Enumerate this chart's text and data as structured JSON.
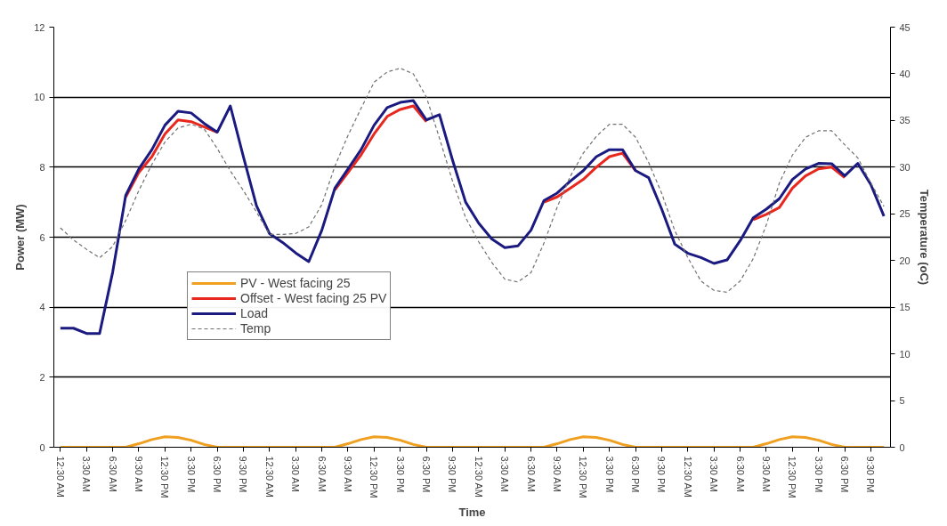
{
  "chart_data": {
    "type": "line",
    "xlabel": "Time",
    "ylabel": "Power (MW)",
    "y2label": "Temperature (oC)",
    "ylim": [
      0,
      12
    ],
    "yticks": [
      0,
      2,
      4,
      6,
      8,
      10,
      12
    ],
    "y2lim": [
      0,
      45
    ],
    "y2ticks": [
      0,
      5,
      10,
      15,
      20,
      25,
      30,
      35,
      40,
      45
    ],
    "categories": [
      "12:30 AM",
      null,
      "3:30 AM",
      null,
      "6:30 AM",
      null,
      "9:30 AM",
      null,
      "12:30 PM",
      null,
      "3:30 PM",
      null,
      "6:30 PM",
      null,
      "9:30 PM",
      null,
      "12:30 AM",
      null,
      "3:30 AM",
      null,
      "6:30 AM",
      null,
      "9:30 AM",
      null,
      "12:30 PM",
      null,
      "3:30 PM",
      null,
      "6:30 PM",
      null,
      "9:30 PM",
      null,
      "12:30 AM",
      null,
      "3:30 AM",
      null,
      "6:30 AM",
      null,
      "9:30 AM",
      null,
      "12:30 PM",
      null,
      "3:30 PM",
      null,
      "6:30 PM",
      null,
      "9:30 PM",
      null,
      "12:30 AM",
      null,
      "3:30 AM",
      null,
      "6:30 AM",
      null,
      "9:30 AM",
      null,
      "12:30 PM",
      null,
      "3:30 PM",
      null,
      "6:30 PM",
      null,
      "9:30 PM",
      null
    ],
    "grid": "y",
    "legend": "left",
    "line_style": "solid",
    "marker": "none",
    "series": [
      {
        "name": "PV - West facing 25",
        "color": "#f0a020",
        "values": [
          0,
          0,
          0,
          0,
          0,
          0,
          0.1,
          0.22,
          0.3,
          0.28,
          0.2,
          0.08,
          0,
          0,
          0,
          0,
          0,
          0,
          0,
          0,
          0,
          0,
          0.1,
          0.22,
          0.3,
          0.28,
          0.2,
          0.08,
          0,
          0,
          0,
          0,
          0,
          0,
          0,
          0,
          0,
          0,
          0.1,
          0.22,
          0.3,
          0.28,
          0.2,
          0.08,
          0,
          0,
          0,
          0,
          0,
          0,
          0,
          0,
          0,
          0,
          0.1,
          0.22,
          0.3,
          0.28,
          0.2,
          0.08,
          0,
          0,
          0,
          0
        ]
      },
      {
        "name": "Offset - West facing 25 PV",
        "color": "#e8281e",
        "values": [
          null,
          null,
          null,
          null,
          null,
          7.15,
          7.85,
          8.3,
          8.95,
          9.35,
          9.3,
          9.15,
          9.0,
          null,
          null,
          null,
          null,
          null,
          null,
          null,
          null,
          7.35,
          7.85,
          8.35,
          8.95,
          9.45,
          9.65,
          9.75,
          9.3,
          null,
          null,
          null,
          null,
          null,
          null,
          null,
          null,
          7.0,
          7.15,
          7.4,
          7.65,
          8.0,
          8.3,
          8.4,
          7.9,
          null,
          null,
          null,
          null,
          null,
          null,
          null,
          null,
          6.5,
          6.65,
          6.85,
          7.4,
          7.75,
          7.95,
          8.0,
          7.7,
          null,
          null,
          null
        ]
      },
      {
        "name": "Load",
        "color": "#1a1a80",
        "values": [
          3.4,
          3.4,
          3.25,
          3.25,
          5.0,
          7.2,
          7.95,
          8.5,
          9.2,
          9.6,
          9.55,
          9.25,
          9.0,
          9.75,
          8.3,
          6.9,
          6.1,
          5.85,
          5.55,
          5.3,
          6.2,
          7.4,
          7.95,
          8.5,
          9.2,
          9.7,
          9.85,
          9.9,
          9.35,
          9.5,
          8.2,
          7.0,
          6.4,
          5.95,
          5.7,
          5.75,
          6.2,
          7.05,
          7.26,
          7.6,
          7.9,
          8.3,
          8.5,
          8.5,
          7.9,
          7.7,
          6.8,
          5.8,
          5.54,
          5.42,
          5.25,
          5.35,
          5.9,
          6.55,
          6.8,
          7.1,
          7.65,
          7.95,
          8.11,
          8.1,
          7.75,
          8.11,
          7.5,
          6.6
        ]
      },
      {
        "name": "Temp",
        "color": "#707070",
        "axis": "y2",
        "line_style": "dashed",
        "values": [
          23.5,
          22.2,
          21.2,
          20.3,
          21.5,
          24.3,
          27.5,
          30.3,
          32.7,
          34.2,
          34.6,
          34.1,
          32.0,
          29.6,
          27.5,
          25.2,
          22.8,
          22.8,
          22.9,
          23.6,
          26,
          30.1,
          33.4,
          36.3,
          39.1,
          40.2,
          40.6,
          40.0,
          37.5,
          33.1,
          28.5,
          24.6,
          22.0,
          19.8,
          18.0,
          17.7,
          18.7,
          21.9,
          25.7,
          29.0,
          31.5,
          33.3,
          34.6,
          34.6,
          33.2,
          30.5,
          27.2,
          23.2,
          20.3,
          17.8,
          16.8,
          16.6,
          17.8,
          20.2,
          23.8,
          28.3,
          31.3,
          33.2,
          33.9,
          33.9,
          32.4,
          31.0,
          28.3,
          25.8
        ]
      }
    ]
  }
}
